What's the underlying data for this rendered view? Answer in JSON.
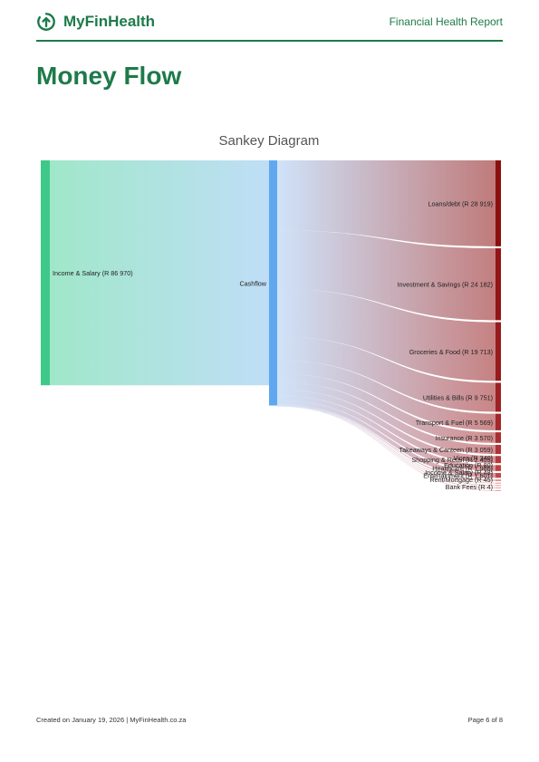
{
  "header": {
    "brand": "MyFinHealth",
    "report_title": "Financial Health Report",
    "logo_icon": "upload-arrow-circle-icon",
    "brand_color": "#1e7a4a"
  },
  "page": {
    "title": "Money Flow"
  },
  "chart_data": {
    "type": "sankey",
    "title": "Sankey Diagram",
    "source": {
      "label": "Income & Salary (R 86 970)",
      "value": 86970
    },
    "hub": {
      "label": "Cashflow"
    },
    "targets": [
      {
        "label": "Loans/debt (R 28 919)",
        "value": 28919
      },
      {
        "label": "Investment & Savings (R 24 182)",
        "value": 24182
      },
      {
        "label": "Groceries & Food (R 19 713)",
        "value": 19713
      },
      {
        "label": "Utilities & Bills (R 9 751)",
        "value": 9751
      },
      {
        "label": "Transport & Fuel (R 5 569)",
        "value": 5569
      },
      {
        "label": "Insurance (R 3 570)",
        "value": 3570
      },
      {
        "label": "Takeaways & Canteen (R 3 059)",
        "value": 3059
      },
      {
        "label": "Shopping & Retail (R 2 405)",
        "value": 2405
      },
      {
        "label": "Healthcare (R 1 986)",
        "value": 1986
      },
      {
        "label": "Entertainment (R 1 601)",
        "value": 1601
      },
      {
        "label": "Vices (R 340)",
        "value": 340
      },
      {
        "label": "Education (R 80)",
        "value": 80
      },
      {
        "label": "Income & Salary (R 48)",
        "value": 48
      },
      {
        "label": "Rent/Mortgage (R 45)",
        "value": 45
      },
      {
        "label": "Bank Fees (R 4)",
        "value": 4
      }
    ],
    "colors": {
      "source": "#3ec98a",
      "hub": "#5fa8f0",
      "target_dark": "#8b0f0f",
      "target_light": "#e0656a"
    }
  },
  "footer": {
    "created": "Created on January 19, 2026 | MyFinHealth.co.za",
    "page_number": "Page 6 of 8"
  }
}
